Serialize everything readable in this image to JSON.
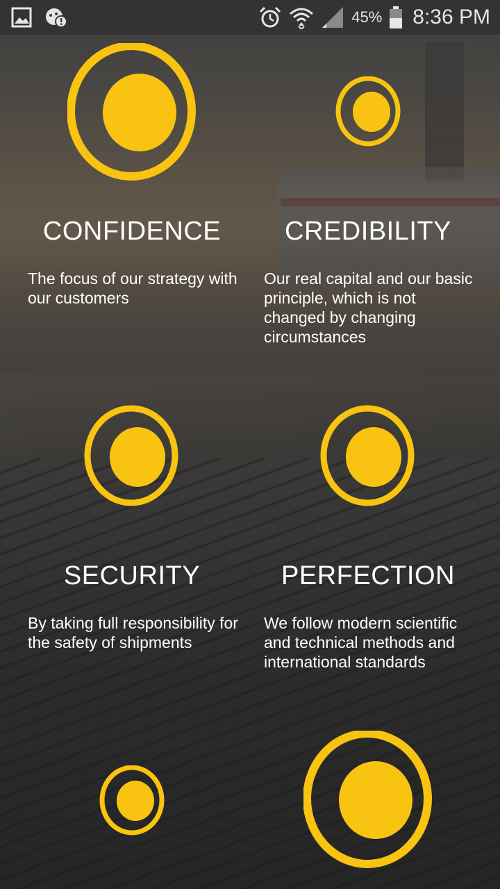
{
  "status_bar": {
    "battery_percent": "45%",
    "time": "8:36 PM",
    "icons": [
      "gallery-icon",
      "game-alert-icon",
      "alarm-icon",
      "wifi-icon",
      "signal-icon",
      "battery-icon"
    ]
  },
  "colors": {
    "accent": "#f9c411",
    "text": "#ffffff"
  },
  "values": [
    {
      "title": "CONFIDENCE",
      "description": "The focus of our strategy with our customers"
    },
    {
      "title": "CREDIBILITY",
      "description": "Our real capital and our basic principle, which is not changed by changing circumstances"
    },
    {
      "title": "SECURITY",
      "description": "By taking full responsibility for the safety of shipments"
    },
    {
      "title": "PERFECTION",
      "description": "We follow modern scientific and technical methods and international standards"
    }
  ]
}
